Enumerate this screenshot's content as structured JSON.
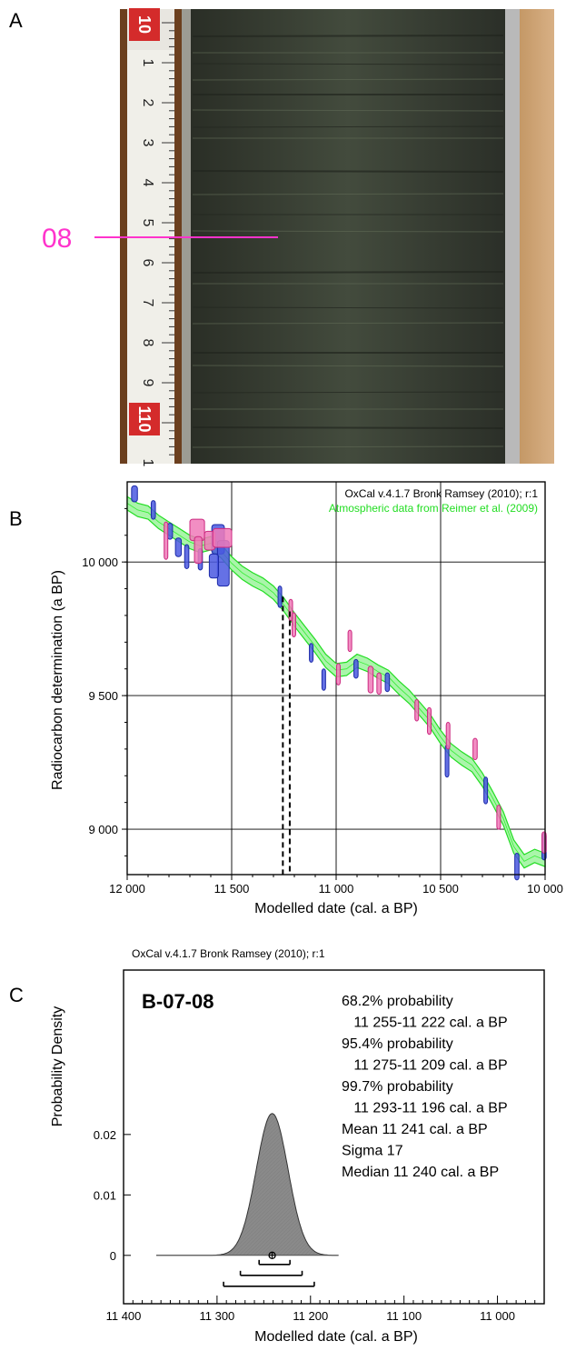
{
  "panels": {
    "a": {
      "letter": "A",
      "sample_label": "08",
      "ruler_ticks": [
        "0",
        "1",
        "2",
        "3",
        "4",
        "5",
        "6",
        "7",
        "8",
        "9",
        "10",
        "1"
      ],
      "ruler_major": [
        "10",
        "110"
      ],
      "colors": {
        "label": "#ff33cc",
        "core": "#3e4638",
        "wood": "#cba070",
        "ruler": "#f2f2ee"
      }
    },
    "b": {
      "letter": "B",
      "credit": "OxCal v.4.1.7 Bronk Ramsey (2010); r:1",
      "calibration_note": "Atmospheric data from Reimer et al. (2009)",
      "colors": {
        "curve": "#33ee33",
        "series_blue": "#2233cc",
        "series_pink": "#ee3399",
        "dashed": "#000000"
      }
    },
    "c": {
      "letter": "C",
      "credit": "OxCal v.4.1.7 Bronk Ramsey (2010); r:1",
      "sample_id": "B-07-08",
      "summary_lines": [
        "68.2% probability",
        "  11 255-11 222 cal. a BP",
        "95.4% probability",
        "  11 275-11 209 cal. a BP",
        "99.7% probability",
        "  11 293-11 196 cal. a BP",
        "Mean 11 241 cal. a BP",
        "Sigma 17",
        "Median 11 240 cal. a BP"
      ],
      "colors": {
        "fill": "#8a8a8a"
      }
    }
  },
  "chart_data": [
    {
      "type": "scatter",
      "panel": "B",
      "xlabel": "Modelled date (cal. a BP)",
      "ylabel": "Radiocarbon determination (a BP)",
      "xlim": [
        12000,
        10000
      ],
      "ylim": [
        8830,
        10300
      ],
      "x_reversed": true,
      "xticks": [
        12000,
        11500,
        11000,
        10500,
        10000
      ],
      "xtick_labels": [
        "12 000",
        "11 500",
        "11 000",
        "10 500",
        "10 000"
      ],
      "yticks": [
        9000,
        9500,
        10000
      ],
      "ytick_labels": [
        "9 000",
        "9 500",
        "10 000"
      ],
      "grid": true,
      "vertical_markers": [
        11255,
        11222
      ],
      "series": [
        {
          "name": "Atmospheric data from Reimer et al. (2009)",
          "kind": "band",
          "points": [
            [
              12000,
              10220
            ],
            [
              11950,
              10195
            ],
            [
              11900,
              10185
            ],
            [
              11850,
              10150
            ],
            [
              11800,
              10125
            ],
            [
              11750,
              10100
            ],
            [
              11700,
              10075
            ],
            [
              11650,
              10060
            ],
            [
              11600,
              10070
            ],
            [
              11550,
              10040
            ],
            [
              11500,
              9995
            ],
            [
              11450,
              9960
            ],
            [
              11400,
              9935
            ],
            [
              11350,
              9915
            ],
            [
              11300,
              9885
            ],
            [
              11250,
              9840
            ],
            [
              11200,
              9785
            ],
            [
              11150,
              9735
            ],
            [
              11100,
              9685
            ],
            [
              11050,
              9630
            ],
            [
              11000,
              9595
            ],
            [
              10950,
              9600
            ],
            [
              10900,
              9630
            ],
            [
              10850,
              9615
            ],
            [
              10800,
              9590
            ],
            [
              10750,
              9570
            ],
            [
              10700,
              9530
            ],
            [
              10650,
              9495
            ],
            [
              10600,
              9450
            ],
            [
              10550,
              9405
            ],
            [
              10500,
              9345
            ],
            [
              10450,
              9295
            ],
            [
              10400,
              9265
            ],
            [
              10350,
              9240
            ],
            [
              10300,
              9185
            ],
            [
              10250,
              9115
            ],
            [
              10200,
              9040
            ],
            [
              10150,
              8935
            ],
            [
              10100,
              8880
            ],
            [
              10050,
              8900
            ],
            [
              10000,
              8885
            ]
          ],
          "width": 50
        },
        {
          "kind": "boxes",
          "color": "blue",
          "boxes": [
            [
              11965,
              10255,
              14,
              30
            ],
            [
              11875,
              10195,
              10,
              35
            ],
            [
              11795,
              10115,
              12,
              30
            ],
            [
              11755,
              10055,
              14,
              35
            ],
            [
              11715,
              10020,
              10,
              45
            ],
            [
              11650,
              10010,
              10,
              40
            ],
            [
              11565,
              10085,
              30,
              55
            ],
            [
              11540,
              9995,
              28,
              85
            ],
            [
              11585,
              9985,
              22,
              45
            ],
            [
              11270,
              9870,
              8,
              40
            ],
            [
              11120,
              9660,
              8,
              35
            ],
            [
              11060,
              9560,
              8,
              40
            ],
            [
              10905,
              9600,
              10,
              35
            ],
            [
              10755,
              9550,
              10,
              35
            ],
            [
              10470,
              9255,
              8,
              60
            ],
            [
              10285,
              9145,
              8,
              50
            ],
            [
              10135,
              8860,
              10,
              50
            ],
            [
              10005,
              8935,
              10,
              50
            ]
          ]
        },
        {
          "kind": "boxes",
          "color": "pink",
          "boxes": [
            [
              11815,
              10080,
              8,
              70
            ],
            [
              11665,
              10120,
              35,
              40
            ],
            [
              11605,
              10080,
              25,
              35
            ],
            [
              11545,
              10090,
              45,
              35
            ],
            [
              11660,
              10045,
              18,
              50
            ],
            [
              11220,
              9820,
              6,
              40
            ],
            [
              11205,
              9765,
              6,
              45
            ],
            [
              10990,
              9580,
              8,
              40
            ],
            [
              10935,
              9705,
              8,
              40
            ],
            [
              10835,
              9560,
              12,
              50
            ],
            [
              10795,
              9545,
              10,
              40
            ],
            [
              10615,
              9445,
              8,
              40
            ],
            [
              10555,
              9405,
              8,
              50
            ],
            [
              10465,
              9350,
              8,
              50
            ],
            [
              10335,
              9300,
              10,
              40
            ],
            [
              10225,
              9045,
              6,
              45
            ],
            [
              10005,
              8950,
              10,
              40
            ]
          ]
        }
      ]
    },
    {
      "type": "area",
      "panel": "C",
      "xlabel": "Modelled date (cal. a BP)",
      "ylabel": "Probability Density",
      "xlim": [
        11400,
        10950
      ],
      "x_reversed": true,
      "xticks": [
        11400,
        11300,
        11200,
        11100,
        11000
      ],
      "xtick_labels": [
        "11 400",
        "11 300",
        "11 200",
        "11 100",
        "11 000"
      ],
      "yticks": [
        0,
        0.01,
        0.02
      ],
      "ytick_labels": [
        "0",
        "0.01",
        "0.02"
      ],
      "ylim": [
        -0.008,
        0.0472
      ],
      "mean": 11241,
      "sigma": 17,
      "median": 11240,
      "density_x_range": [
        11365,
        11170
      ],
      "ranges": [
        [
          11255,
          11222
        ],
        [
          11275,
          11209
        ],
        [
          11293,
          11196
        ]
      ]
    }
  ]
}
